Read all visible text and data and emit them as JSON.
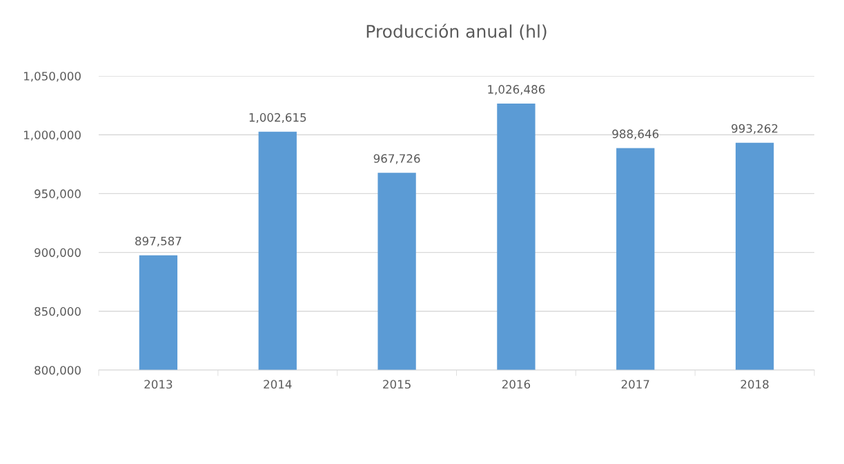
{
  "chart_data": {
    "type": "bar",
    "title": "Producción anual (hl)",
    "categories": [
      "2013",
      "2014",
      "2015",
      "2016",
      "2017",
      "2018"
    ],
    "values": [
      897587,
      1002615,
      967726,
      1026486,
      988646,
      993262
    ],
    "color": "#5b9bd5",
    "ylim": [
      800000,
      1050000
    ],
    "yticks": [
      {
        "value": 800000,
        "label": "800,000"
      },
      {
        "value": 850000,
        "label": "850,000"
      },
      {
        "value": 900000,
        "label": "900,000"
      },
      {
        "value": 950000,
        "label": "950,000"
      },
      {
        "value": 1000000,
        "label": "1,000,000"
      },
      {
        "value": 1050000,
        "label": "1,050,000"
      }
    ],
    "grid": "y",
    "value_labels": [
      "897,587",
      "1,002,615",
      "967,726",
      "1,026,486",
      "988,646",
      "993,262"
    ]
  }
}
